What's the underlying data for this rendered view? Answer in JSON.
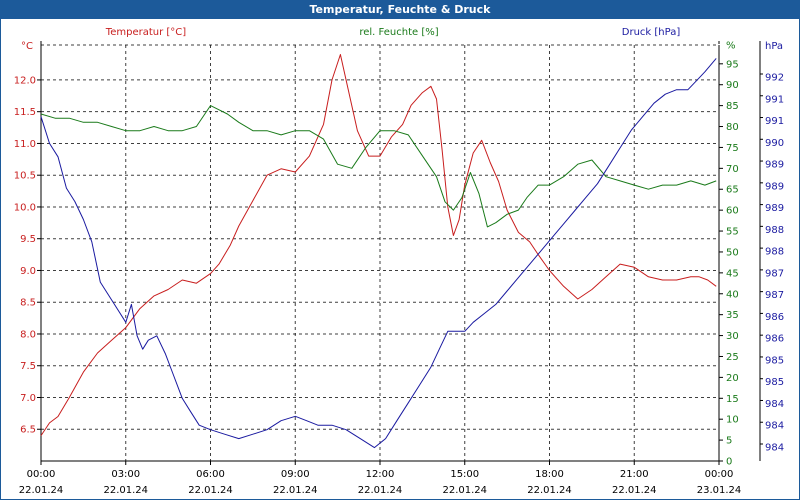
{
  "window": {
    "title": "Temperatur, Feuchte & Druck"
  },
  "chart_data": {
    "type": "line",
    "title": "Temperatur, Feuchte & Druck",
    "grid": true,
    "x_tick_times": [
      "00:00",
      "03:00",
      "06:00",
      "09:00",
      "12:00",
      "15:00",
      "18:00",
      "21:00",
      "00:00"
    ],
    "x_tick_dates": [
      "22.01.24",
      "22.01.24",
      "22.01.24",
      "22.01.24",
      "22.01.24",
      "22.01.24",
      "22.01.24",
      "22.01.24",
      "23.01.24"
    ],
    "xlim_hours": [
      0,
      24
    ],
    "axes": {
      "temperature": {
        "label": "Temperatur [°C]",
        "unit": "°C",
        "color": "#c81e1e",
        "ylim": [
          6.0,
          12.55
        ],
        "ticks": [
          "12.0",
          "11.5",
          "11.0",
          "10.5",
          "10.0",
          "9.5",
          "9.0",
          "8.5",
          "8.0",
          "7.5",
          "7.0",
          "6.5"
        ]
      },
      "humidity": {
        "label": "rel. Feuchte [%]",
        "unit": "%",
        "color": "#1a7a1a",
        "ylim": [
          0,
          99.5
        ],
        "ticks": [
          "95",
          "90",
          "85",
          "80",
          "75",
          "70",
          "65",
          "60",
          "55",
          "50",
          "45",
          "40",
          "35",
          "30",
          "25",
          "20",
          "15",
          "10",
          "5",
          "0"
        ]
      },
      "pressure": {
        "label": "Druck [hPa]",
        "unit": "hPa",
        "color": "#1a1aa0",
        "ylim": [
          983.5,
          992.8
        ],
        "ticks": [
          "992",
          "991",
          "991",
          "990",
          "989",
          "989",
          "989",
          "988",
          "988",
          "987",
          "987",
          "986",
          "986",
          "985",
          "985",
          "984",
          "984",
          "984"
        ]
      }
    },
    "series": [
      {
        "name": "Temperatur [°C]",
        "axis": "temperature",
        "color": "#c81e1e",
        "x": [
          0,
          0.3,
          0.6,
          1.0,
          1.5,
          2.0,
          2.5,
          3.0,
          3.5,
          4.0,
          4.5,
          5.0,
          5.5,
          6.0,
          6.3,
          6.7,
          7.0,
          7.5,
          8.0,
          8.5,
          9.0,
          9.5,
          10.0,
          10.3,
          10.6,
          10.9,
          11.2,
          11.6,
          12.0,
          12.4,
          12.8,
          13.1,
          13.5,
          13.8,
          14.0,
          14.2,
          14.4,
          14.6,
          14.8,
          15.0,
          15.3,
          15.6,
          15.9,
          16.2,
          16.5,
          16.9,
          17.3,
          17.6,
          18.0,
          18.5,
          19.0,
          19.5,
          20.0,
          20.5,
          21.0,
          21.5,
          22.0,
          22.5,
          23.0,
          23.3,
          23.6,
          23.9
        ],
        "y": [
          6.4,
          6.6,
          6.7,
          7.0,
          7.4,
          7.7,
          7.9,
          8.1,
          8.4,
          8.6,
          8.7,
          8.85,
          8.8,
          8.95,
          9.1,
          9.4,
          9.7,
          10.1,
          10.5,
          10.6,
          10.55,
          10.8,
          11.3,
          12.0,
          12.4,
          11.8,
          11.2,
          10.8,
          10.8,
          11.1,
          11.3,
          11.6,
          11.8,
          11.9,
          11.7,
          10.9,
          10.0,
          9.55,
          9.8,
          10.35,
          10.85,
          11.05,
          10.7,
          10.4,
          9.95,
          9.6,
          9.45,
          9.25,
          9.0,
          8.75,
          8.55,
          8.7,
          8.9,
          9.1,
          9.05,
          8.9,
          8.85,
          8.85,
          8.9,
          8.9,
          8.85,
          8.75
        ]
      },
      {
        "name": "rel. Feuchte [%]",
        "axis": "humidity",
        "color": "#1a7a1a",
        "x": [
          0,
          0.5,
          1.0,
          1.5,
          2.0,
          2.5,
          3.0,
          3.5,
          4.0,
          4.5,
          5.0,
          5.5,
          6.0,
          6.3,
          6.6,
          7.0,
          7.5,
          8.0,
          8.5,
          9.0,
          9.5,
          10.0,
          10.5,
          11.0,
          11.5,
          12.0,
          12.5,
          13.0,
          13.5,
          14.0,
          14.3,
          14.6,
          14.9,
          15.2,
          15.5,
          15.8,
          16.1,
          16.5,
          16.9,
          17.2,
          17.6,
          18.0,
          18.5,
          19.0,
          19.5,
          20.0,
          20.5,
          21.0,
          21.5,
          22.0,
          22.5,
          23.0,
          23.5,
          23.9
        ],
        "y": [
          83,
          82,
          82,
          81,
          81,
          80,
          79,
          79,
          80,
          79,
          79,
          80,
          85,
          84,
          83,
          81,
          79,
          79,
          78,
          79,
          79,
          77,
          71,
          70,
          75,
          79,
          79,
          78,
          73,
          68,
          62,
          60,
          63,
          69,
          64,
          56,
          57,
          59,
          60,
          63,
          66,
          66,
          68,
          71,
          72,
          68,
          67,
          66,
          65,
          66,
          66,
          67,
          66,
          67
        ]
      },
      {
        "name": "Druck [hPa]",
        "axis": "pressure",
        "color": "#1a1aa0",
        "x": [
          0,
          0.3,
          0.6,
          0.9,
          1.2,
          1.5,
          1.8,
          2.1,
          2.4,
          2.7,
          3.0,
          3.2,
          3.4,
          3.6,
          3.8,
          4.1,
          4.4,
          4.7,
          5.0,
          5.3,
          5.6,
          6.0,
          6.5,
          7.0,
          7.5,
          8.0,
          8.5,
          9.0,
          9.4,
          9.8,
          10.3,
          10.8,
          11.3,
          11.8,
          12.2,
          12.6,
          13.0,
          13.4,
          13.8,
          14.1,
          14.4,
          14.7,
          15.0,
          15.3,
          15.7,
          16.1,
          16.5,
          16.9,
          17.3,
          17.7,
          18.1,
          18.5,
          18.9,
          19.3,
          19.7,
          20.1,
          20.5,
          20.9,
          21.3,
          21.7,
          22.1,
          22.5,
          22.9,
          23.2,
          23.5,
          23.9
        ],
        "y": [
          991.2,
          990.6,
          990.3,
          989.6,
          989.3,
          988.9,
          988.4,
          987.5,
          987.2,
          986.9,
          986.6,
          987.0,
          986.3,
          986.0,
          986.2,
          986.3,
          985.9,
          985.4,
          984.9,
          984.6,
          984.3,
          984.2,
          984.1,
          984.0,
          984.1,
          984.2,
          984.4,
          984.5,
          984.4,
          984.3,
          984.3,
          984.2,
          984.0,
          983.8,
          984.0,
          984.4,
          984.8,
          985.2,
          985.6,
          986.0,
          986.4,
          986.4,
          986.4,
          986.6,
          986.8,
          987.0,
          987.3,
          987.6,
          987.9,
          988.2,
          988.5,
          988.8,
          989.1,
          989.4,
          989.7,
          990.1,
          990.5,
          990.9,
          991.2,
          991.5,
          991.7,
          991.8,
          991.8,
          992.0,
          992.2,
          992.5
        ]
      }
    ]
  }
}
